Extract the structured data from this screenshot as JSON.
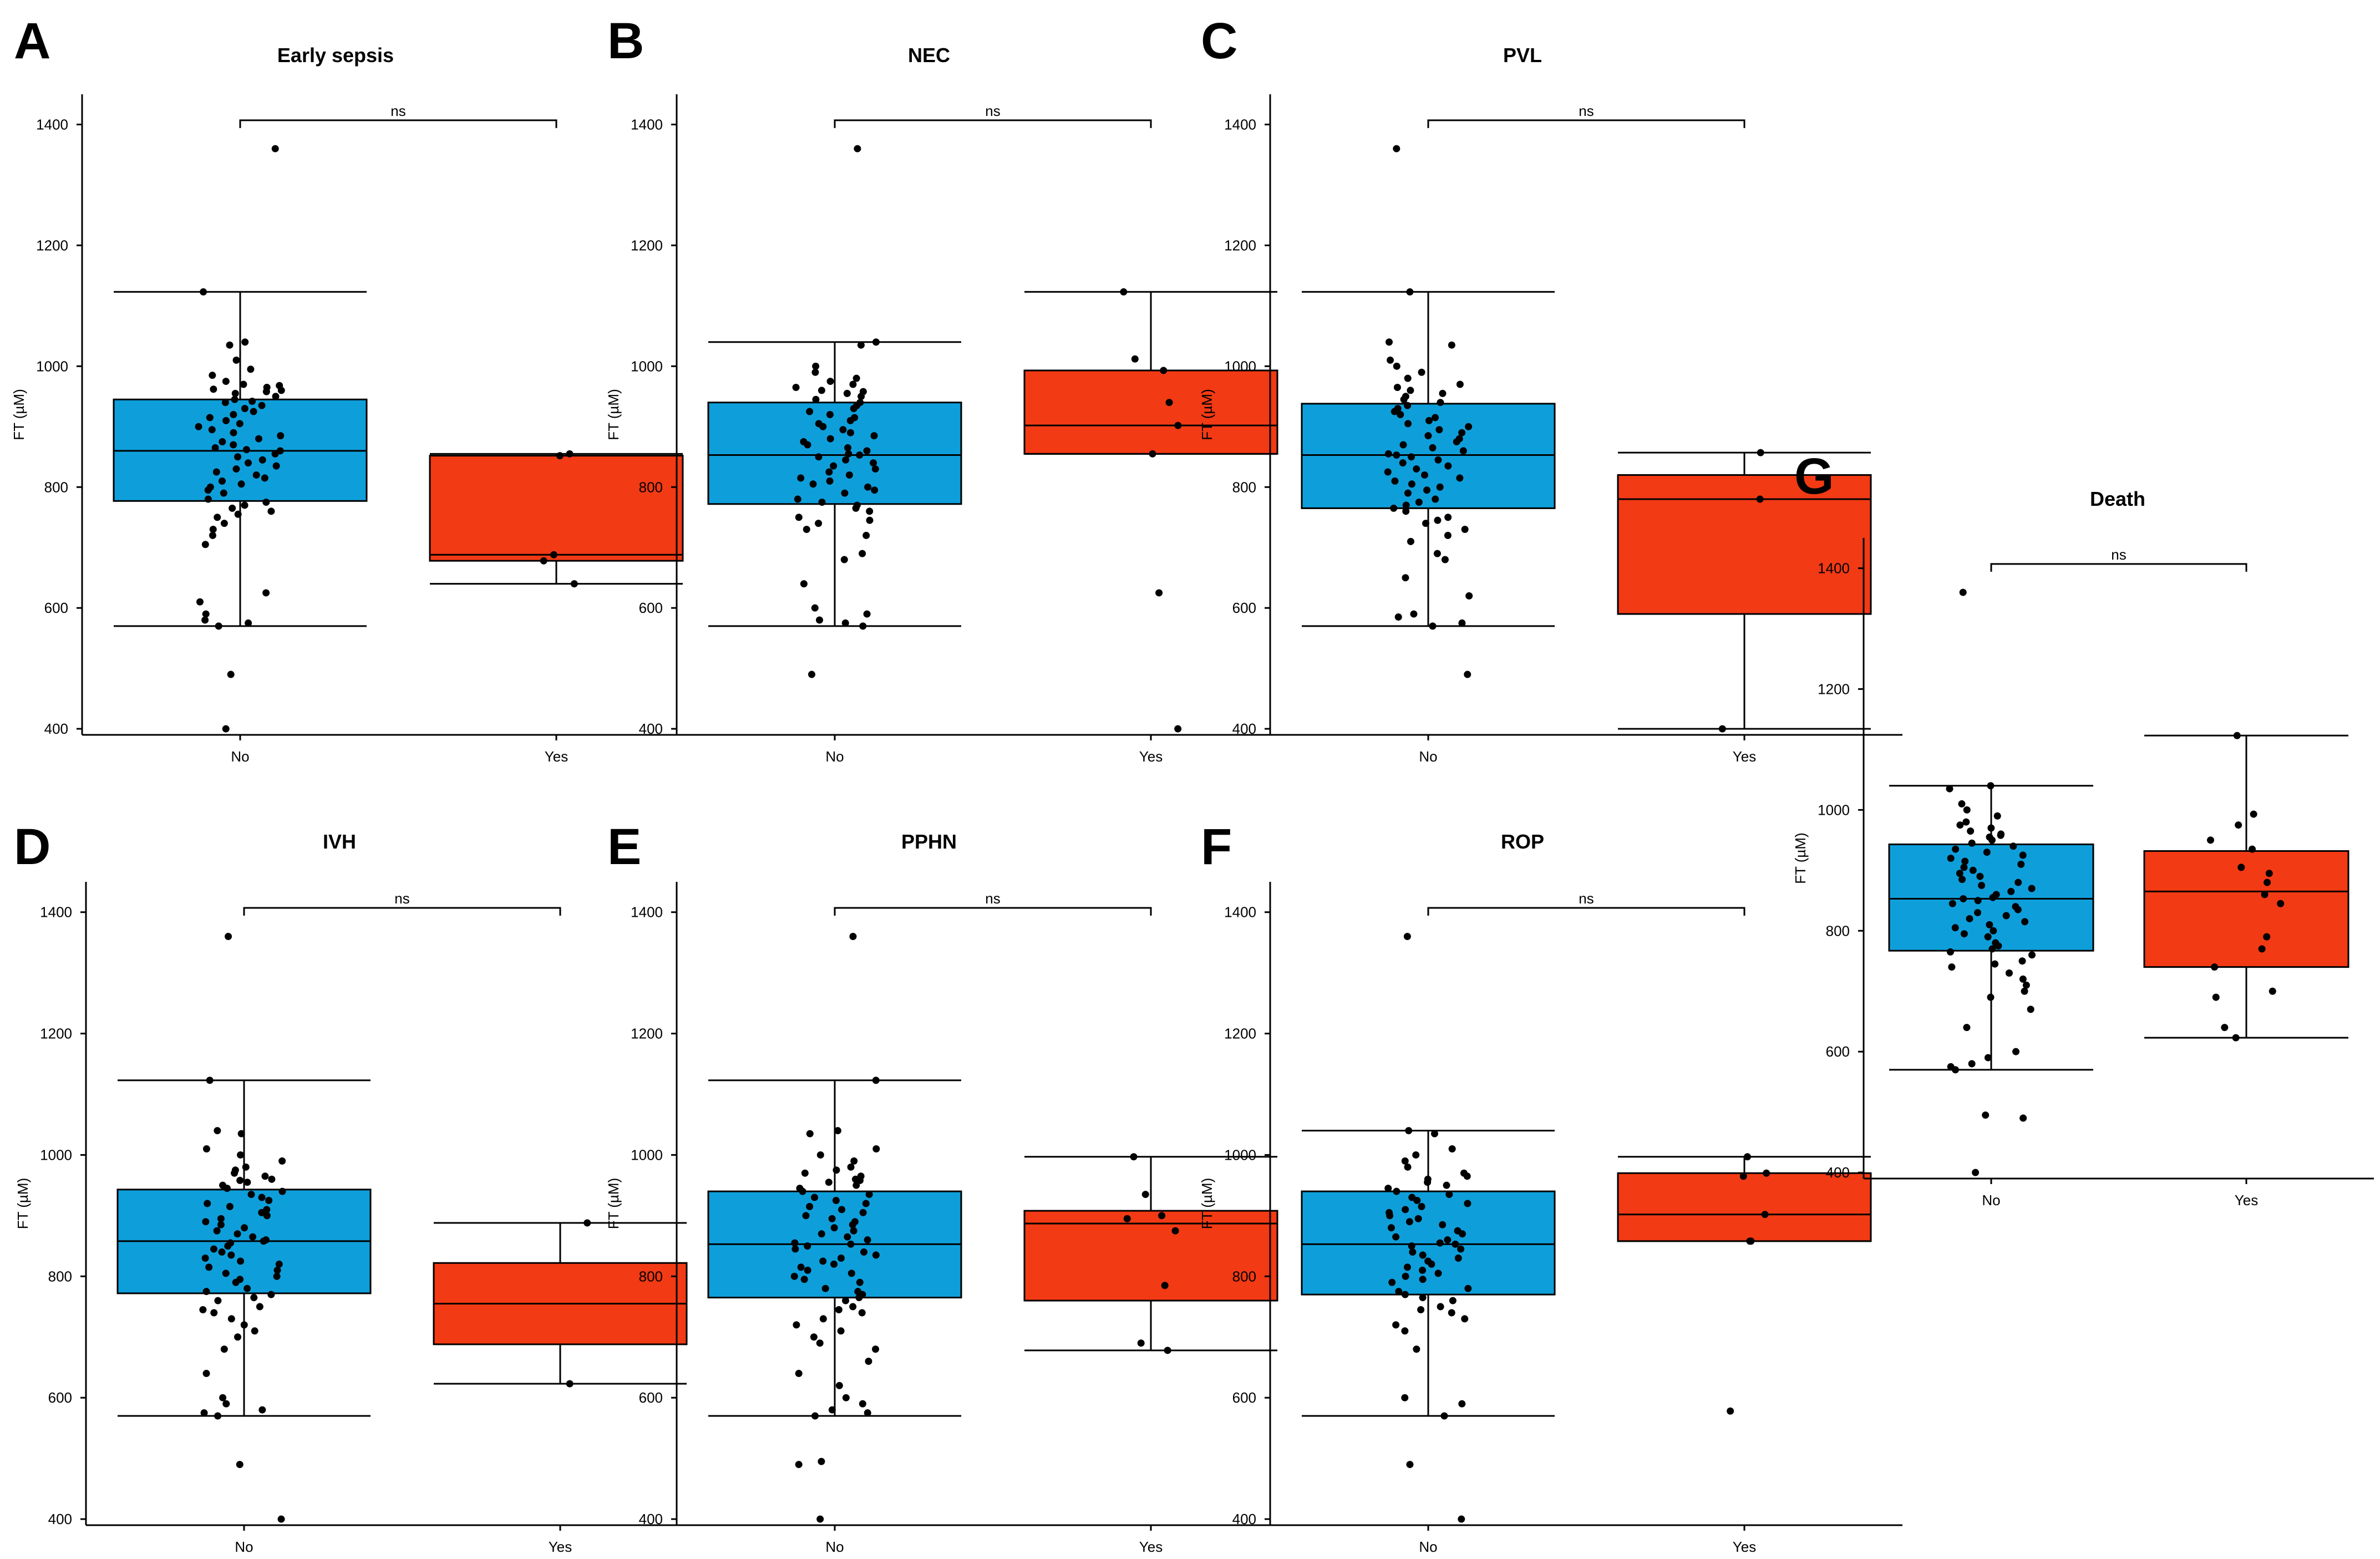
{
  "figure": {
    "colors": {
      "no": "#0E9FDB",
      "yes": "#F23A14",
      "stroke": "#000000",
      "point": "#000000"
    },
    "y_axis_label": "FT (µM)",
    "y_ticks": [
      "400",
      "600",
      "800",
      "1000",
      "1200",
      "1400"
    ]
  },
  "chart_data": [
    {
      "type": "box",
      "panel_letter": "A",
      "title": "Early sepsis",
      "categories": [
        "No",
        "Yes"
      ],
      "xlabel": "",
      "ylabel": "FT (µM)",
      "ylim": [
        390,
        1450
      ],
      "significance": "ns",
      "boxes": [
        {
          "group": "No",
          "whisker_low": 570,
          "q1": 777,
          "median": 860,
          "q3": 945,
          "whisker_high": 1123,
          "points": [
            1360,
            1123,
            1040,
            1035,
            1010,
            995,
            985,
            975,
            970,
            968,
            965,
            962,
            960,
            958,
            955,
            950,
            945,
            942,
            940,
            935,
            930,
            925,
            920,
            915,
            910,
            905,
            900,
            895,
            890,
            885,
            880,
            875,
            870,
            865,
            862,
            860,
            855,
            850,
            845,
            840,
            835,
            830,
            825,
            820,
            815,
            810,
            805,
            800,
            795,
            790,
            780,
            775,
            770,
            765,
            760,
            755,
            750,
            740,
            730,
            720,
            705,
            625,
            610,
            590,
            580,
            575,
            570,
            490,
            400
          ]
        },
        {
          "group": "Yes",
          "whisker_low": 640,
          "q1": 678,
          "median": 688,
          "q3": 852,
          "whisker_high": 855,
          "points": [
            855,
            852,
            688,
            678,
            640
          ]
        }
      ]
    },
    {
      "type": "box",
      "panel_letter": "B",
      "title": "NEC",
      "categories": [
        "No",
        "Yes"
      ],
      "xlabel": "",
      "ylabel": "FT (µM)",
      "ylim": [
        390,
        1450
      ],
      "significance": "ns",
      "boxes": [
        {
          "group": "No",
          "whisker_low": 570,
          "q1": 772,
          "median": 853,
          "q3": 940,
          "whisker_high": 1040,
          "points": [
            1360,
            1040,
            1035,
            1000,
            990,
            980,
            975,
            970,
            965,
            960,
            958,
            955,
            950,
            945,
            940,
            935,
            930,
            925,
            920,
            915,
            910,
            905,
            900,
            895,
            890,
            885,
            880,
            875,
            870,
            865,
            860,
            855,
            853,
            850,
            845,
            840,
            835,
            830,
            825,
            820,
            815,
            810,
            805,
            800,
            795,
            790,
            780,
            775,
            770,
            765,
            760,
            750,
            745,
            740,
            730,
            720,
            690,
            680,
            640,
            600,
            590,
            580,
            575,
            570,
            490
          ]
        },
        {
          "group": "Yes",
          "whisker_low": 855,
          "q1": 855,
          "median": 902,
          "q3": 993,
          "whisker_high": 1123,
          "points": [
            1123,
            1012,
            993,
            940,
            902,
            855,
            625,
            400
          ]
        }
      ]
    },
    {
      "type": "box",
      "panel_letter": "C",
      "title": "PVL",
      "categories": [
        "No",
        "Yes"
      ],
      "xlabel": "",
      "ylabel": "FT (µM)",
      "ylim": [
        390,
        1450
      ],
      "significance": "ns",
      "boxes": [
        {
          "group": "No",
          "whisker_low": 570,
          "q1": 765,
          "median": 853,
          "q3": 938,
          "whisker_high": 1123,
          "points": [
            1360,
            1123,
            1040,
            1035,
            1010,
            1000,
            990,
            980,
            970,
            965,
            960,
            955,
            950,
            945,
            940,
            935,
            930,
            925,
            920,
            915,
            910,
            905,
            900,
            895,
            890,
            885,
            880,
            875,
            870,
            865,
            860,
            855,
            853,
            850,
            845,
            840,
            835,
            830,
            825,
            820,
            815,
            810,
            805,
            800,
            795,
            790,
            780,
            775,
            770,
            765,
            760,
            750,
            745,
            740,
            730,
            720,
            710,
            690,
            680,
            650,
            620,
            590,
            585,
            575,
            570,
            490
          ]
        },
        {
          "group": "Yes",
          "whisker_low": 400,
          "q1": 590,
          "median": 780,
          "q3": 820,
          "whisker_high": 857,
          "points": [
            857,
            780,
            400
          ]
        }
      ]
    },
    {
      "type": "box",
      "panel_letter": "D",
      "title": "IVH",
      "categories": [
        "No",
        "Yes"
      ],
      "xlabel": "",
      "ylabel": "FT (µM)",
      "ylim": [
        390,
        1450
      ],
      "significance": "ns",
      "boxes": [
        {
          "group": "No",
          "whisker_low": 570,
          "q1": 772,
          "median": 858,
          "q3": 943,
          "whisker_high": 1123,
          "points": [
            1360,
            1123,
            1040,
            1035,
            1010,
            1000,
            990,
            980,
            975,
            970,
            965,
            960,
            958,
            955,
            950,
            945,
            940,
            935,
            930,
            925,
            920,
            915,
            910,
            905,
            900,
            895,
            890,
            885,
            880,
            875,
            870,
            865,
            860,
            858,
            855,
            850,
            845,
            840,
            835,
            830,
            825,
            820,
            815,
            810,
            805,
            800,
            795,
            790,
            780,
            775,
            770,
            765,
            760,
            750,
            745,
            740,
            730,
            720,
            710,
            700,
            680,
            640,
            600,
            590,
            580,
            575,
            570,
            490,
            400
          ]
        },
        {
          "group": "Yes",
          "whisker_low": 623,
          "q1": 688,
          "median": 755,
          "q3": 822,
          "whisker_high": 888,
          "points": [
            888,
            623
          ]
        }
      ]
    },
    {
      "type": "box",
      "panel_letter": "E",
      "title": "PPHN",
      "categories": [
        "No",
        "Yes"
      ],
      "xlabel": "",
      "ylabel": "FT (µM)",
      "ylim": [
        390,
        1450
      ],
      "significance": "ns",
      "boxes": [
        {
          "group": "No",
          "whisker_low": 570,
          "q1": 765,
          "median": 853,
          "q3": 940,
          "whisker_high": 1123,
          "points": [
            1360,
            1123,
            1040,
            1035,
            1010,
            1000,
            990,
            980,
            975,
            970,
            965,
            960,
            958,
            955,
            950,
            945,
            940,
            935,
            930,
            925,
            920,
            915,
            910,
            905,
            900,
            895,
            890,
            885,
            880,
            875,
            870,
            865,
            860,
            855,
            853,
            850,
            845,
            840,
            835,
            830,
            825,
            820,
            815,
            810,
            805,
            800,
            795,
            790,
            780,
            775,
            770,
            765,
            760,
            750,
            745,
            740,
            730,
            720,
            710,
            700,
            690,
            680,
            660,
            640,
            620,
            600,
            590,
            580,
            575,
            570,
            495,
            490,
            400
          ]
        },
        {
          "group": "Yes",
          "whisker_low": 678,
          "q1": 760,
          "median": 887,
          "q3": 908,
          "whisker_high": 997,
          "points": [
            997,
            935,
            900,
            895,
            875,
            785,
            690,
            678
          ]
        }
      ]
    },
    {
      "type": "box",
      "panel_letter": "F",
      "title": "ROP",
      "categories": [
        "No",
        "Yes"
      ],
      "xlabel": "",
      "ylabel": "FT (µM)",
      "ylim": [
        390,
        1450
      ],
      "significance": "ns",
      "boxes": [
        {
          "group": "No",
          "whisker_low": 570,
          "q1": 770,
          "median": 853,
          "q3": 940,
          "whisker_high": 1040,
          "points": [
            1360,
            1040,
            1035,
            1010,
            1000,
            990,
            980,
            970,
            965,
            960,
            955,
            950,
            945,
            940,
            935,
            930,
            925,
            920,
            915,
            910,
            905,
            900,
            895,
            890,
            885,
            880,
            875,
            870,
            865,
            860,
            855,
            853,
            850,
            845,
            840,
            835,
            830,
            825,
            820,
            815,
            810,
            805,
            800,
            795,
            790,
            780,
            775,
            770,
            765,
            760,
            750,
            745,
            740,
            730,
            720,
            710,
            680,
            600,
            590,
            570,
            490,
            400
          ]
        },
        {
          "group": "Yes",
          "whisker_low": 858,
          "q1": 858,
          "median": 902,
          "q3": 970,
          "whisker_high": 997,
          "points": [
            997,
            970,
            965,
            902,
            858,
            858,
            578
          ]
        }
      ]
    },
    {
      "type": "box",
      "panel_letter": "G",
      "title": "Death",
      "categories": [
        "No",
        "Yes"
      ],
      "xlabel": "",
      "ylabel": "FT (µM)",
      "ylim": [
        390,
        1450
      ],
      "significance": "ns",
      "boxes": [
        {
          "group": "No",
          "whisker_low": 570,
          "q1": 767,
          "median": 853,
          "q3": 943,
          "whisker_high": 1040,
          "points": [
            1360,
            1040,
            1035,
            1010,
            1000,
            990,
            980,
            975,
            970,
            965,
            960,
            958,
            955,
            950,
            945,
            940,
            935,
            930,
            925,
            920,
            915,
            910,
            905,
            900,
            895,
            890,
            885,
            880,
            875,
            870,
            865,
            860,
            855,
            853,
            850,
            845,
            840,
            835,
            830,
            825,
            820,
            815,
            810,
            805,
            800,
            795,
            790,
            780,
            775,
            770,
            765,
            760,
            750,
            745,
            740,
            730,
            720,
            710,
            700,
            690,
            670,
            640,
            600,
            590,
            580,
            575,
            570,
            495,
            490,
            400
          ]
        },
        {
          "group": "Yes",
          "whisker_low": 623,
          "q1": 740,
          "median": 865,
          "q3": 932,
          "whisker_high": 1123,
          "points": [
            1123,
            993,
            975,
            950,
            935,
            905,
            895,
            880,
            860,
            845,
            790,
            770,
            740,
            700,
            690,
            640,
            623
          ]
        }
      ]
    }
  ]
}
